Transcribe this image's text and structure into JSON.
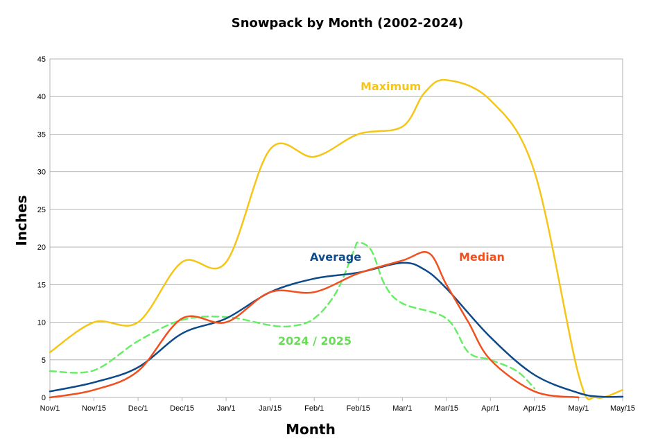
{
  "chart_data": {
    "type": "line",
    "title": "Snowpack by Month (2002-2024)",
    "xlabel": "Month",
    "ylabel": "Inches",
    "ylim": [
      0,
      45
    ],
    "yticks": [
      0,
      5,
      10,
      15,
      20,
      25,
      30,
      35,
      40,
      45
    ],
    "categories": [
      "Nov/1",
      "Nov/15",
      "Dec/1",
      "Dec/15",
      "Jan/1",
      "Jan/15",
      "Feb/1",
      "Feb/15",
      "Mar/1",
      "Mar/15",
      "Apr/1",
      "Apr/15",
      "May/1",
      "May/15"
    ],
    "grid": true,
    "legend": "inline labels",
    "series": [
      {
        "name": "Maximum",
        "color": "#f5c518",
        "dashed": false,
        "x": [
          0,
          1,
          2,
          3,
          4,
          5,
          6,
          7,
          8,
          8.5,
          9,
          10,
          11,
          12,
          12.4,
          13
        ],
        "values": [
          6,
          10,
          10,
          18,
          18,
          33,
          32,
          35,
          36,
          40.5,
          42.2,
          39.5,
          30,
          3,
          0,
          1
        ]
      },
      {
        "name": "Average",
        "color": "#0d4a8a",
        "dashed": false,
        "x": [
          0,
          1,
          2,
          3,
          4,
          5,
          6,
          7,
          8,
          8.5,
          9,
          10,
          11,
          12,
          12.5,
          13
        ],
        "values": [
          0.8,
          2,
          4,
          8.5,
          10.5,
          14,
          15.8,
          16.6,
          17.9,
          17,
          14.5,
          8,
          3,
          0.6,
          0.1,
          0.1
        ]
      },
      {
        "name": "Median",
        "color": "#f0501e",
        "dashed": false,
        "x": [
          0,
          1,
          2,
          3,
          4,
          5,
          6,
          7,
          8,
          8.6,
          9,
          9.5,
          10,
          11,
          12
        ],
        "values": [
          0,
          1,
          3.5,
          10.5,
          10,
          14,
          14,
          16.5,
          18.2,
          19.2,
          15,
          10,
          5,
          0.8,
          0
        ]
      },
      {
        "name": "2024 / 2025",
        "color": "#66ee66",
        "dashed": true,
        "x": [
          0,
          1,
          2,
          3,
          4,
          5,
          5.5,
          6,
          6.5,
          6.9,
          7,
          7.3,
          7.6,
          8,
          9,
          9.5,
          10,
          10.6,
          11
        ],
        "values": [
          3.5,
          3.6,
          7.5,
          10.3,
          10.7,
          9.6,
          9.5,
          10.5,
          14,
          19.5,
          20.6,
          19.5,
          15,
          12.5,
          10.5,
          6,
          5,
          3.5,
          1.2
        ]
      }
    ],
    "labels": {
      "maximum": "Maximum",
      "average": "Average",
      "median": "Median",
      "current": "2024 / 2025"
    }
  }
}
